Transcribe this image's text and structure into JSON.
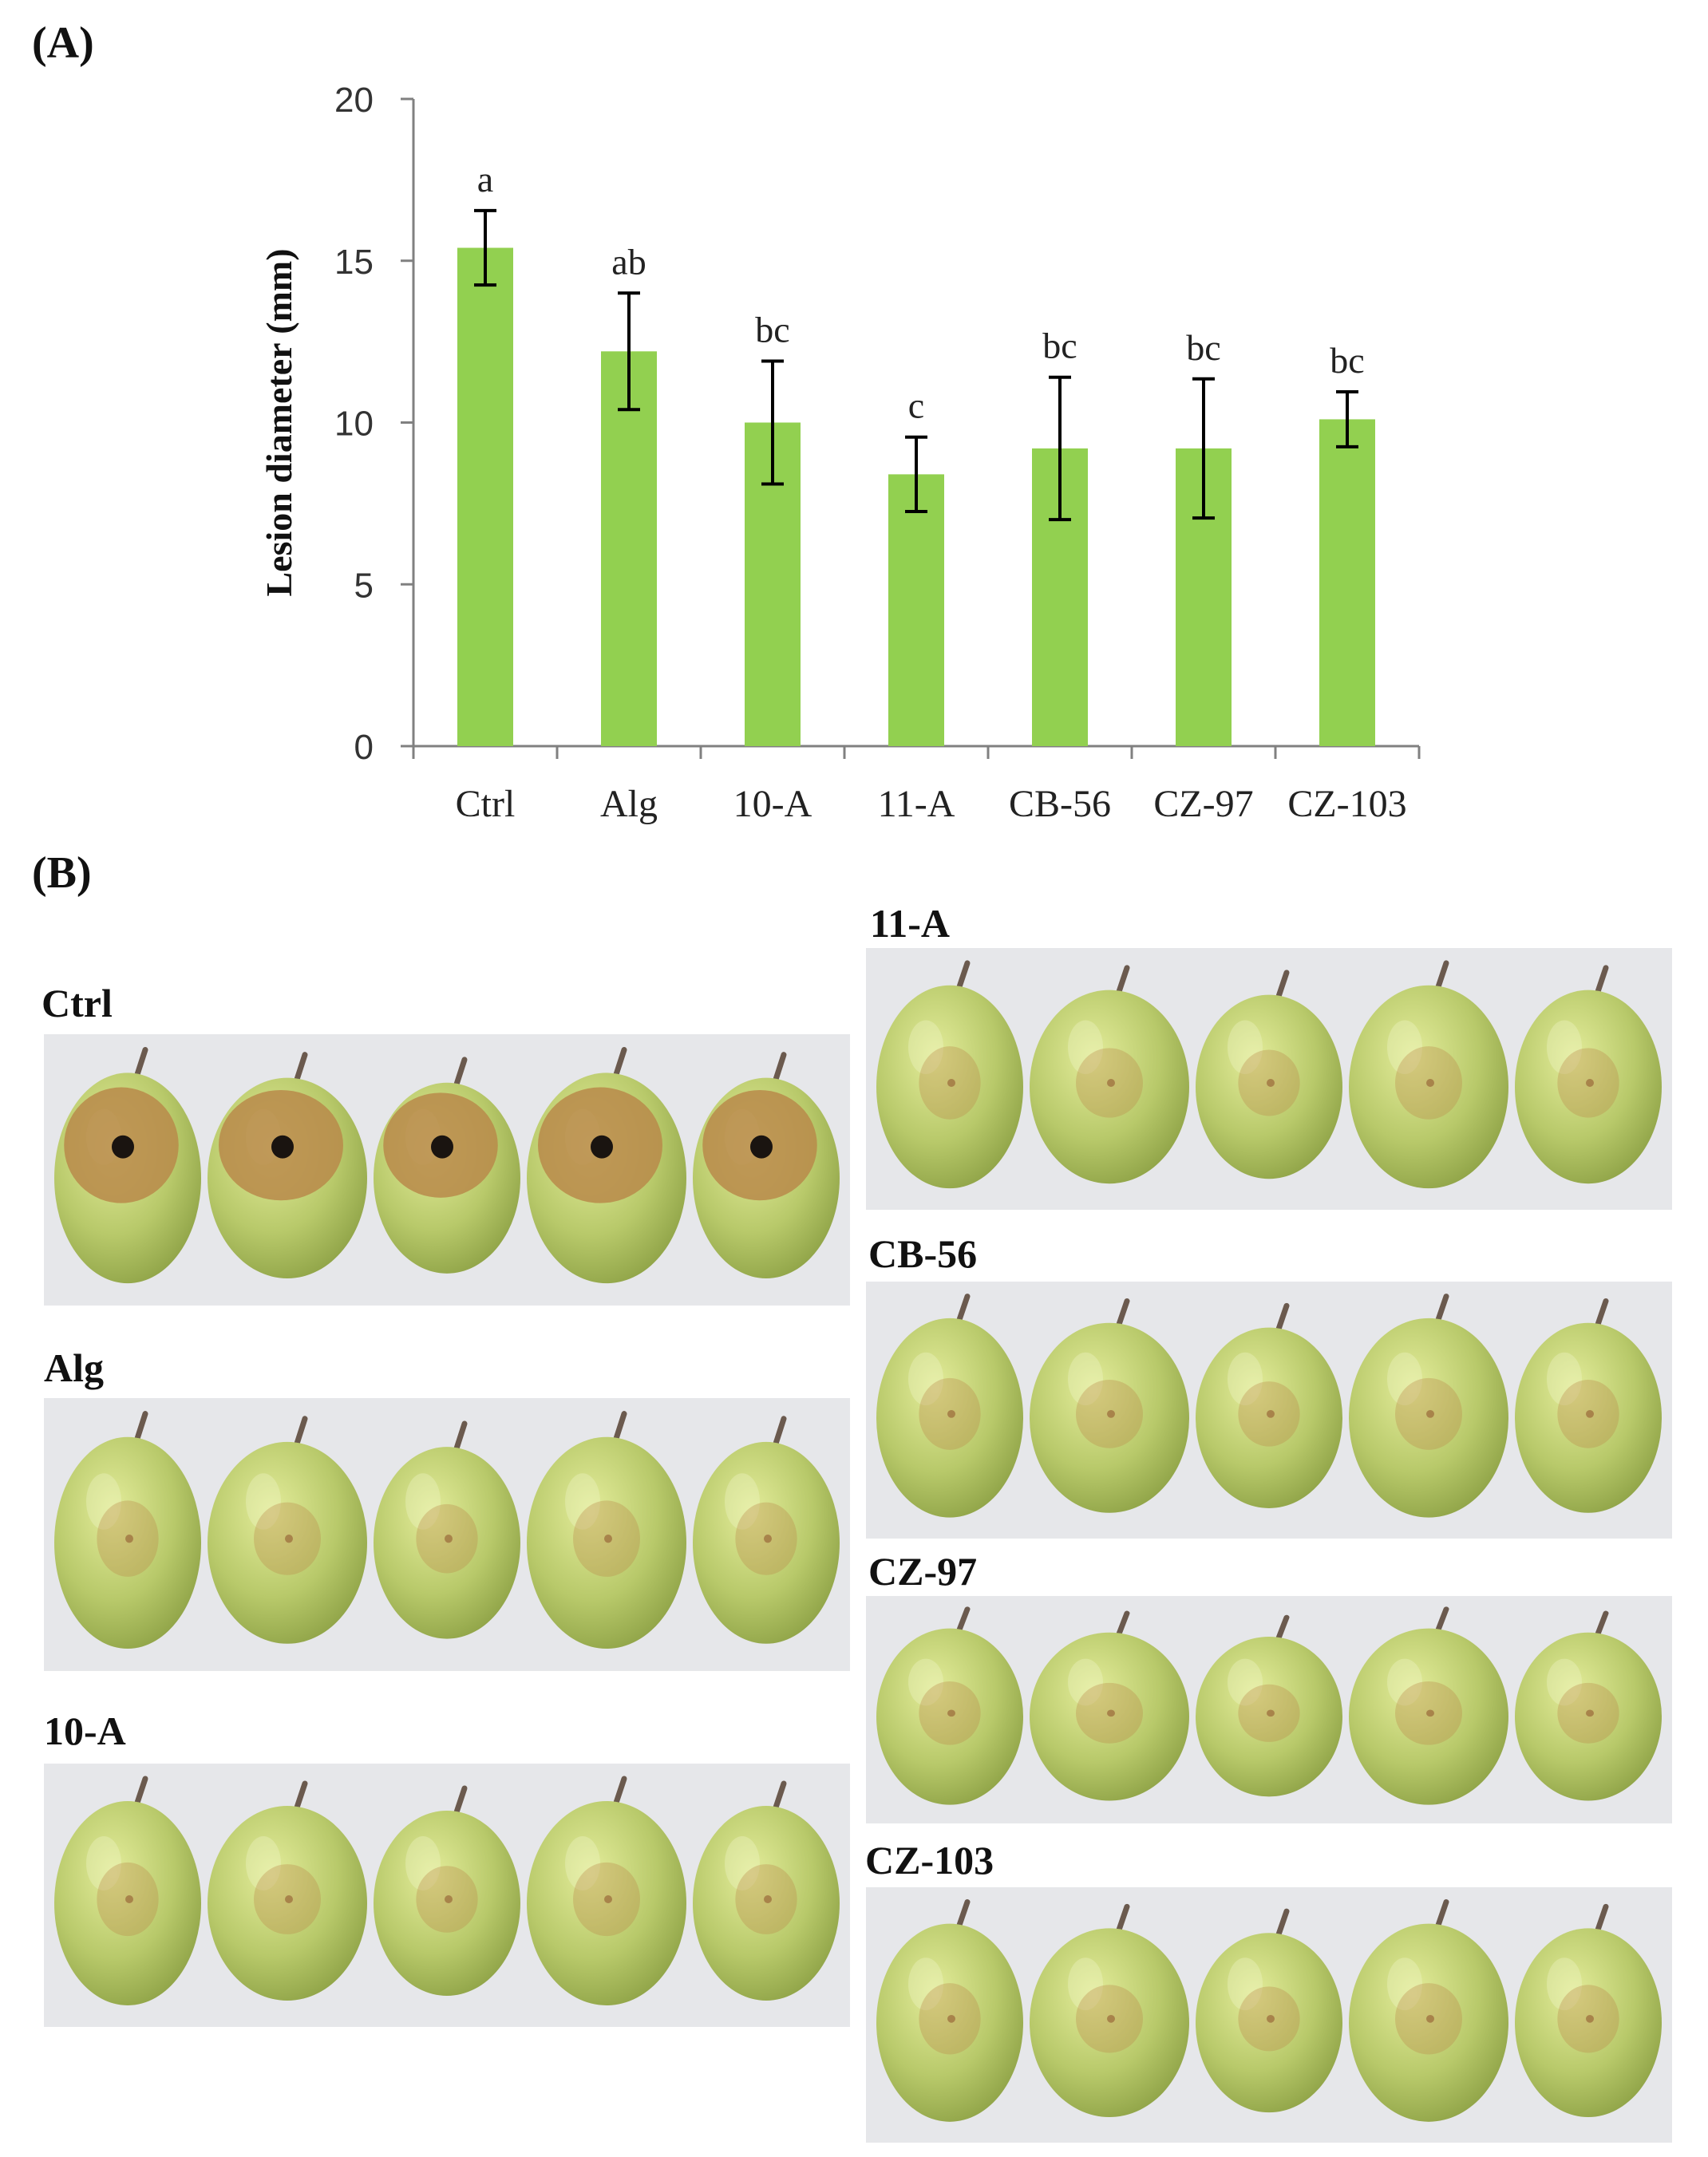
{
  "panel_labels": {
    "a": "(A)",
    "b": "(B)"
  },
  "colors": {
    "bar": "#92d050",
    "axis": "#808080",
    "error": "#000000",
    "grape": "#b8c96a",
    "lesion": "#b98a4a",
    "lesion_dark": "#1a1410"
  },
  "chart_data": {
    "type": "bar",
    "title": "",
    "xlabel": "",
    "ylabel": "Lesion diameter (mm)",
    "ylim": [
      0,
      20
    ],
    "yticks": [
      0,
      5,
      10,
      15,
      20
    ],
    "categories": [
      "Ctrl",
      "Alg",
      "10-A",
      "11-A",
      "CB-56",
      "CZ-97",
      "CZ-103"
    ],
    "values": [
      15.4,
      12.2,
      10.0,
      8.4,
      9.2,
      9.2,
      10.1
    ],
    "errors": [
      1.15,
      1.8,
      1.9,
      1.15,
      2.2,
      2.15,
      0.85
    ],
    "significance": [
      "a",
      "ab",
      "bc",
      "c",
      "bc",
      "bc",
      "bc"
    ]
  },
  "photos": [
    {
      "label": "Ctrl",
      "lesion": "severe"
    },
    {
      "label": "Alg",
      "lesion": "mild"
    },
    {
      "label": "10-A",
      "lesion": "mild"
    },
    {
      "label": "11-A",
      "lesion": "mild"
    },
    {
      "label": "CB-56",
      "lesion": "mild"
    },
    {
      "label": "CZ-97",
      "lesion": "mild"
    },
    {
      "label": "CZ-103",
      "lesion": "mild"
    }
  ]
}
